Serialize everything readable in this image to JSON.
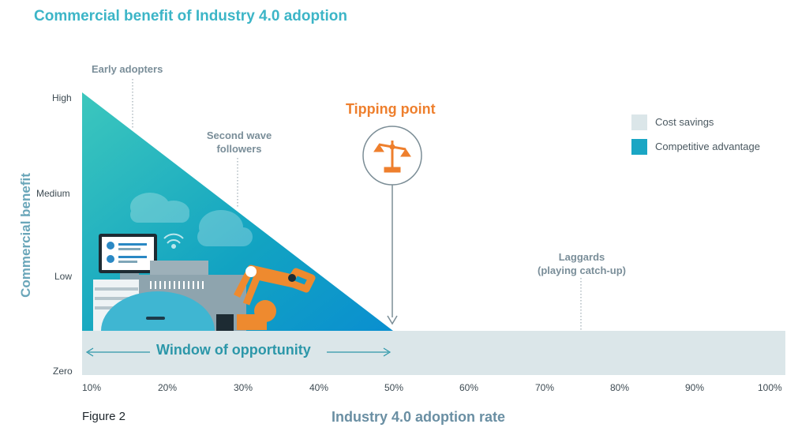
{
  "title": "Commercial benefit of Industry 4.0 adoption",
  "y_axis": {
    "title": "Commercial benefit",
    "ticks": [
      "High",
      "Medium",
      "Low",
      "Zero"
    ]
  },
  "x_axis": {
    "title": "Industry 4.0 adoption rate",
    "ticks": [
      "10%",
      "20%",
      "30%",
      "40%",
      "50%",
      "60%",
      "70%",
      "80%",
      "90%",
      "100%"
    ]
  },
  "annotations": {
    "early_adopters": "Early adopters",
    "second_wave_1": "Second wave",
    "second_wave_2": "followers",
    "tipping_point": "Tipping point",
    "laggards_1": "Laggards",
    "laggards_2": "(playing catch-up)",
    "window": "Window of opportunity"
  },
  "legend": [
    {
      "label": "Cost savings",
      "color": "#dbe6e9"
    },
    {
      "label": "Competitive advantage",
      "color": "#1aa6c4"
    }
  ],
  "figure_caption": "Figure 2",
  "colors": {
    "accent_teal": "#3cb5c7",
    "tipping_orange": "#ee7f2d"
  }
}
